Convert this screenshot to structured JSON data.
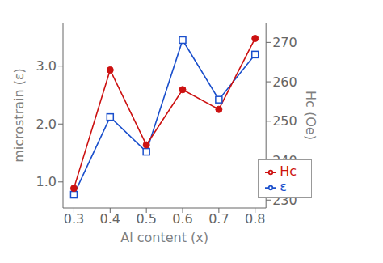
{
  "chart_data": {
    "type": "line",
    "xlabel": "Al content (x)",
    "ylabel": "microstrain (ε)",
    "y2label": "Hc (Oe)",
    "x": [
      0.3,
      0.4,
      0.5,
      0.6,
      0.7,
      0.8
    ],
    "series": [
      {
        "name": "ε",
        "color": "#1a4fcc",
        "marker": "square",
        "values": [
          0.78,
          2.12,
          1.52,
          3.45,
          2.42,
          3.2
        ]
      },
      {
        "name": "Hc",
        "color": "#cc1111",
        "marker": "circle",
        "axis": "y2",
        "values": [
          233,
          263,
          244,
          258,
          253,
          271
        ]
      }
    ],
    "xlim": [
      0.27,
      0.83
    ],
    "xticks": [
      0.3,
      0.4,
      0.5,
      0.6,
      0.7,
      0.8
    ],
    "ylim": [
      0.55,
      3.75
    ],
    "yticks": [
      {
        "value": 1.0,
        "label": "1.0"
      },
      {
        "value": 2.0,
        "label": "2.0"
      },
      {
        "value": 3.0,
        "label": "3.0"
      }
    ],
    "y2lim": [
      228,
      275
    ],
    "y2ticks": [
      230,
      240,
      250,
      260,
      270
    ],
    "grid": false,
    "legend": "lower right"
  }
}
